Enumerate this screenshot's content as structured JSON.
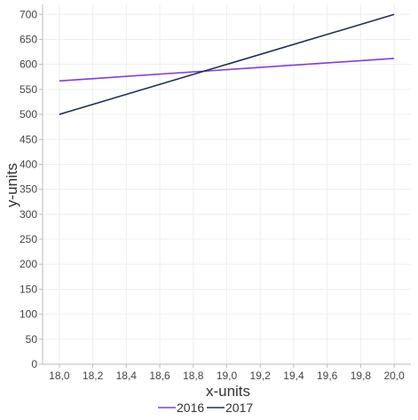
{
  "chart_data": {
    "type": "line",
    "xlabel": "x-units",
    "ylabel": "y-units",
    "xlim": [
      17.9,
      20.1
    ],
    "ylim": [
      0,
      720
    ],
    "x_ticks": [
      18.0,
      18.2,
      18.4,
      18.6,
      18.8,
      19.0,
      19.2,
      19.4,
      19.6,
      19.8,
      20.0
    ],
    "x_tick_labels": [
      "18,0",
      "18,2",
      "18,4",
      "18,6",
      "18,8",
      "19,0",
      "19,2",
      "19,4",
      "19,6",
      "19,8",
      "20,0"
    ],
    "y_ticks": [
      0,
      50,
      100,
      150,
      200,
      250,
      300,
      350,
      400,
      450,
      500,
      550,
      600,
      650,
      700
    ],
    "y_tick_labels": [
      "0",
      "50",
      "100",
      "150",
      "200",
      "250",
      "300",
      "350",
      "400",
      "450",
      "500",
      "550",
      "600",
      "650",
      "700"
    ],
    "grid": true,
    "legend_position": "bottom",
    "series": [
      {
        "name": "2016",
        "color": "#7b3fe4",
        "x": [
          18.0,
          20.0
        ],
        "y": [
          567,
          612
        ]
      },
      {
        "name": "2017",
        "color": "#1e3050",
        "x": [
          18.0,
          20.0
        ],
        "y": [
          500,
          700
        ]
      }
    ]
  }
}
